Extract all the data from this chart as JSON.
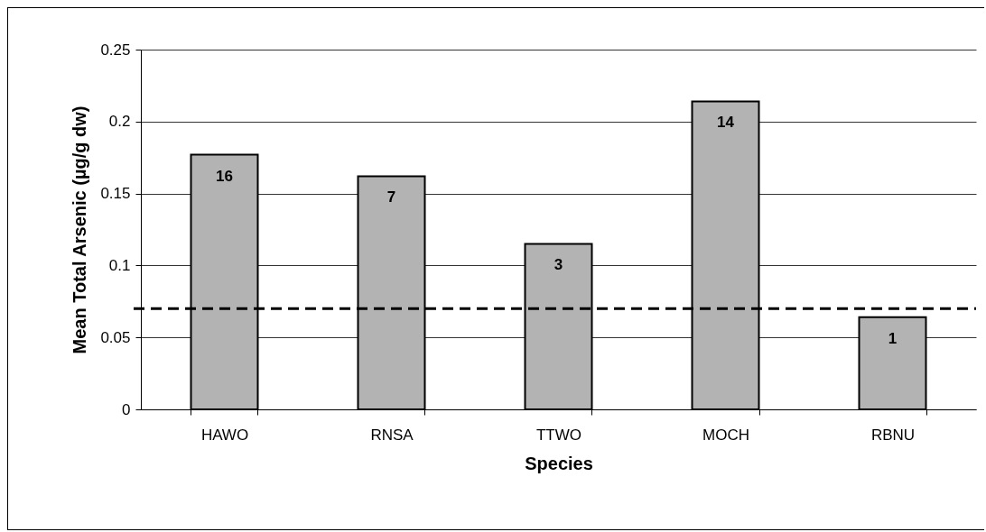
{
  "chart_data": {
    "type": "bar",
    "xlabel": "Species",
    "ylabel": "Mean Total Arsenic (µg/g dw)",
    "categories": [
      "HAWO",
      "RNSA",
      "TTWO",
      "MOCH",
      "RBNU"
    ],
    "values": [
      0.177,
      0.162,
      0.115,
      0.214,
      0.064
    ],
    "color": "#b3b3b3",
    "ylim": [
      0,
      0.25
    ],
    "yticks": [
      0,
      0.05,
      {
        "value": 0.1,
        "label": "0.1"
      },
      0.15,
      {
        "value": 0.2,
        "label": "0.2"
      },
      0.25
    ],
    "grid": "y",
    "ref_lines": [
      {
        "axis": "y",
        "value": 0.07,
        "line_style": "dashed",
        "color": "#000000"
      }
    ],
    "annotations": [
      {
        "text": "16",
        "x": "HAWO",
        "y": 0.177
      },
      {
        "text": "7",
        "x": "RNSA",
        "y": 0.162
      },
      {
        "text": "3",
        "x": "TTWO",
        "y": 0.115
      },
      {
        "text": "14",
        "x": "MOCH",
        "y": 0.214
      },
      {
        "text": "1",
        "x": "RBNU",
        "y": 0.064
      }
    ]
  }
}
